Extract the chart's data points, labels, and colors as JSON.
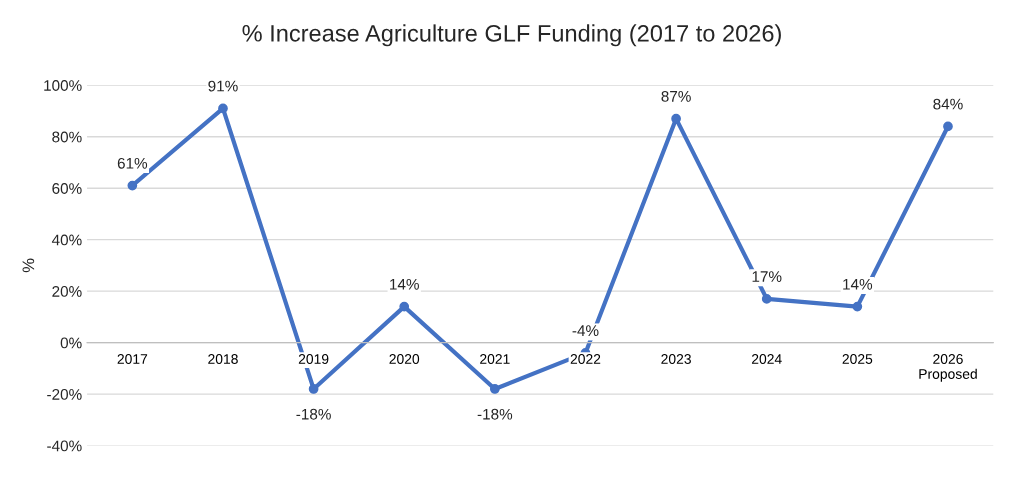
{
  "chart_data": {
    "type": "line",
    "title": "% Increase Agriculture GLF Funding (2017 to 2026)",
    "ylabel": "%",
    "categories": [
      "2017",
      "2018",
      "2019",
      "2020",
      "2021",
      "2022",
      "2023",
      "2024",
      "2025",
      "2026\nProposed"
    ],
    "series": [
      {
        "color": "#4472c4",
        "values": [
          61,
          91,
          -18,
          14,
          -18,
          -4,
          87,
          17,
          14,
          84
        ],
        "value_labels": [
          "61%",
          "91%",
          "-18%",
          "14%",
          "-18%",
          "-4%",
          "87%",
          "17%",
          "14%",
          "84%"
        ]
      }
    ],
    "ylim": [
      -40,
      100
    ],
    "yticks": [
      {
        "value": -40,
        "label": "-40%"
      },
      {
        "value": -20,
        "label": "-20%"
      },
      {
        "value": 0,
        "label": "0%"
      },
      {
        "value": 20,
        "label": "20%"
      },
      {
        "value": 40,
        "label": "40%"
      },
      {
        "value": 60,
        "label": "60%"
      },
      {
        "value": 80,
        "label": "80%"
      },
      {
        "value": 100,
        "label": "100%"
      }
    ],
    "grid": "y",
    "marker": "circle",
    "line_style": "solid",
    "legend": false
  }
}
